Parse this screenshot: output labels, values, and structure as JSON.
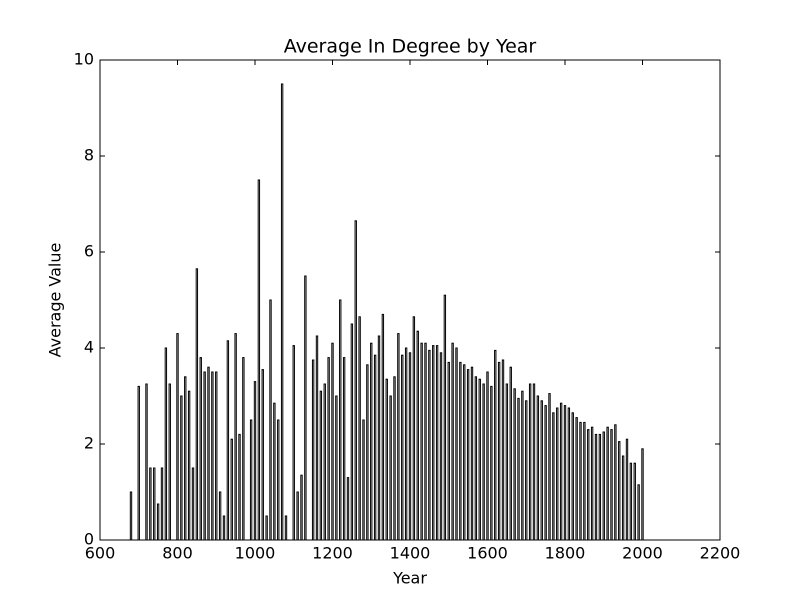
{
  "chart_data": {
    "type": "bar",
    "title": "Average In Degree by Year",
    "xlabel": "Year",
    "ylabel": "Average Value",
    "x": [
      680,
      700,
      720,
      730,
      740,
      750,
      760,
      770,
      780,
      800,
      810,
      820,
      830,
      840,
      850,
      860,
      870,
      880,
      890,
      900,
      910,
      920,
      930,
      940,
      950,
      960,
      970,
      990,
      1000,
      1010,
      1020,
      1030,
      1040,
      1050,
      1060,
      1070,
      1080,
      1100,
      1110,
      1120,
      1130,
      1150,
      1160,
      1170,
      1180,
      1190,
      1200,
      1210,
      1220,
      1230,
      1240,
      1250,
      1260,
      1270,
      1280,
      1290,
      1300,
      1310,
      1320,
      1330,
      1340,
      1350,
      1360,
      1370,
      1380,
      1390,
      1400,
      1410,
      1420,
      1430,
      1440,
      1450,
      1460,
      1470,
      1480,
      1490,
      1500,
      1510,
      1520,
      1530,
      1540,
      1550,
      1560,
      1570,
      1580,
      1590,
      1600,
      1610,
      1620,
      1630,
      1640,
      1650,
      1660,
      1670,
      1680,
      1690,
      1700,
      1710,
      1720,
      1730,
      1740,
      1750,
      1760,
      1770,
      1780,
      1790,
      1800,
      1810,
      1820,
      1830,
      1840,
      1850,
      1860,
      1870,
      1880,
      1890,
      1900,
      1910,
      1920,
      1930,
      1940,
      1950,
      1960,
      1970,
      1980,
      1990,
      2000
    ],
    "values": [
      1.0,
      3.2,
      3.25,
      1.5,
      1.5,
      0.75,
      1.5,
      4.0,
      3.25,
      4.3,
      3.0,
      3.4,
      3.1,
      1.5,
      5.65,
      3.8,
      3.5,
      3.6,
      3.5,
      3.5,
      1.0,
      0.5,
      4.15,
      2.1,
      4.3,
      2.2,
      3.8,
      2.5,
      3.3,
      7.5,
      3.55,
      0.5,
      5.0,
      2.85,
      2.5,
      9.5,
      0.5,
      4.05,
      1.0,
      1.35,
      5.5,
      3.75,
      4.25,
      3.1,
      3.25,
      3.8,
      4.1,
      3.0,
      5.0,
      3.8,
      1.3,
      4.5,
      6.65,
      4.65,
      2.5,
      3.65,
      4.1,
      3.85,
      4.25,
      4.7,
      3.35,
      3.0,
      3.4,
      4.3,
      3.85,
      4.0,
      3.9,
      4.65,
      4.35,
      4.1,
      4.1,
      3.95,
      4.05,
      4.05,
      3.9,
      5.1,
      3.7,
      4.1,
      4.0,
      3.7,
      3.65,
      3.55,
      3.6,
      3.4,
      3.35,
      3.25,
      3.5,
      3.2,
      3.95,
      3.7,
      3.75,
      3.25,
      3.6,
      3.15,
      2.95,
      3.1,
      2.9,
      3.25,
      3.25,
      3.0,
      2.9,
      2.8,
      3.05,
      2.65,
      2.75,
      2.85,
      2.8,
      2.75,
      2.65,
      2.55,
      2.45,
      2.45,
      2.3,
      2.35,
      2.2,
      2.2,
      2.25,
      2.35,
      2.3,
      2.4,
      2.05,
      1.75,
      2.1,
      1.6,
      1.6,
      1.15,
      1.9
    ],
    "color": "#000000",
    "xlim": [
      600,
      2200
    ],
    "xticks": [
      600,
      800,
      1000,
      1200,
      1400,
      1600,
      1800,
      2000,
      2200
    ],
    "ylim": [
      0,
      10
    ],
    "yticks": [
      0,
      2,
      4,
      6,
      8,
      10
    ],
    "grid": false
  }
}
